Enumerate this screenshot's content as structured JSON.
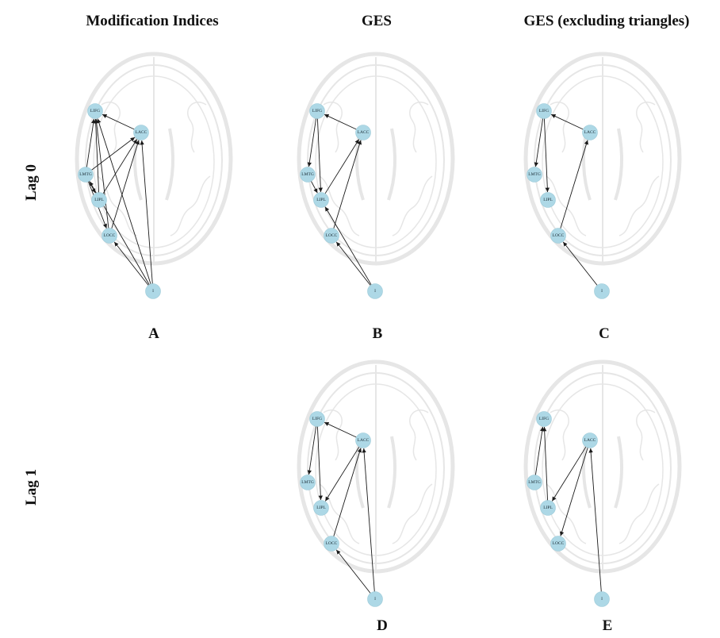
{
  "columns": [
    "Modification Indices",
    "GES",
    "GES (excluding triangles)"
  ],
  "rows": [
    "Lag 0",
    "Lag 1"
  ],
  "colors": {
    "node": "#add8e6",
    "edge": "#1a1a1a",
    "brain": "#e6e6e6"
  },
  "panels": [
    {
      "letter": "A",
      "nodes": [
        "LIFG",
        "LACC",
        "LMTG",
        "LIPL",
        "LOCC",
        "I"
      ],
      "edges": [
        [
          "LACC",
          "LIFG"
        ],
        [
          "LMTG",
          "LIFG"
        ],
        [
          "LIPL",
          "LIFG"
        ],
        [
          "LOCC",
          "LIFG"
        ],
        [
          "I",
          "LIFG"
        ],
        [
          "LMTG",
          "LACC"
        ],
        [
          "LIPL",
          "LACC"
        ],
        [
          "LOCC",
          "LACC"
        ],
        [
          "I",
          "LACC"
        ],
        [
          "LMTG",
          "LIPL"
        ],
        [
          "LMTG",
          "LOCC"
        ],
        [
          "I",
          "LMTG"
        ],
        [
          "I",
          "LOCC"
        ]
      ]
    },
    {
      "letter": "B",
      "nodes": [
        "LIFG",
        "LACC",
        "LMTG",
        "LIPL",
        "LOCC",
        "I"
      ],
      "edges": [
        [
          "LACC",
          "LIFG"
        ],
        [
          "LIFG",
          "LMTG"
        ],
        [
          "LIFG",
          "LIPL"
        ],
        [
          "LMTG",
          "LIPL"
        ],
        [
          "LIPL",
          "LACC"
        ],
        [
          "LOCC",
          "LACC"
        ],
        [
          "I",
          "LOCC"
        ],
        [
          "I",
          "LIPL"
        ]
      ]
    },
    {
      "letter": "C",
      "nodes": [
        "LIFG",
        "LACC",
        "LMTG",
        "LIPL",
        "LOCC",
        "I"
      ],
      "edges": [
        [
          "LACC",
          "LIFG"
        ],
        [
          "LIFG",
          "LMTG"
        ],
        [
          "LIFG",
          "LIPL"
        ],
        [
          "LOCC",
          "LACC"
        ],
        [
          "I",
          "LOCC"
        ]
      ]
    },
    {
      "letter": "D",
      "nodes": [
        "LIFG",
        "LACC",
        "LMTG",
        "LIPL",
        "LOCC",
        "I"
      ],
      "edges": [
        [
          "LACC",
          "LIFG"
        ],
        [
          "LIFG",
          "LMTG"
        ],
        [
          "LIFG",
          "LIPL"
        ],
        [
          "LACC",
          "LIPL"
        ],
        [
          "LOCC",
          "LACC"
        ],
        [
          "I",
          "LACC"
        ],
        [
          "I",
          "LOCC"
        ]
      ]
    },
    {
      "letter": "E",
      "nodes": [
        "LIFG",
        "LACC",
        "LMTG",
        "LIPL",
        "LOCC",
        "I"
      ],
      "edges": [
        [
          "LMTG",
          "LIFG"
        ],
        [
          "LIPL",
          "LIFG"
        ],
        [
          "LACC",
          "LIPL"
        ],
        [
          "LACC",
          "LOCC"
        ],
        [
          "I",
          "LACC"
        ]
      ]
    }
  ]
}
